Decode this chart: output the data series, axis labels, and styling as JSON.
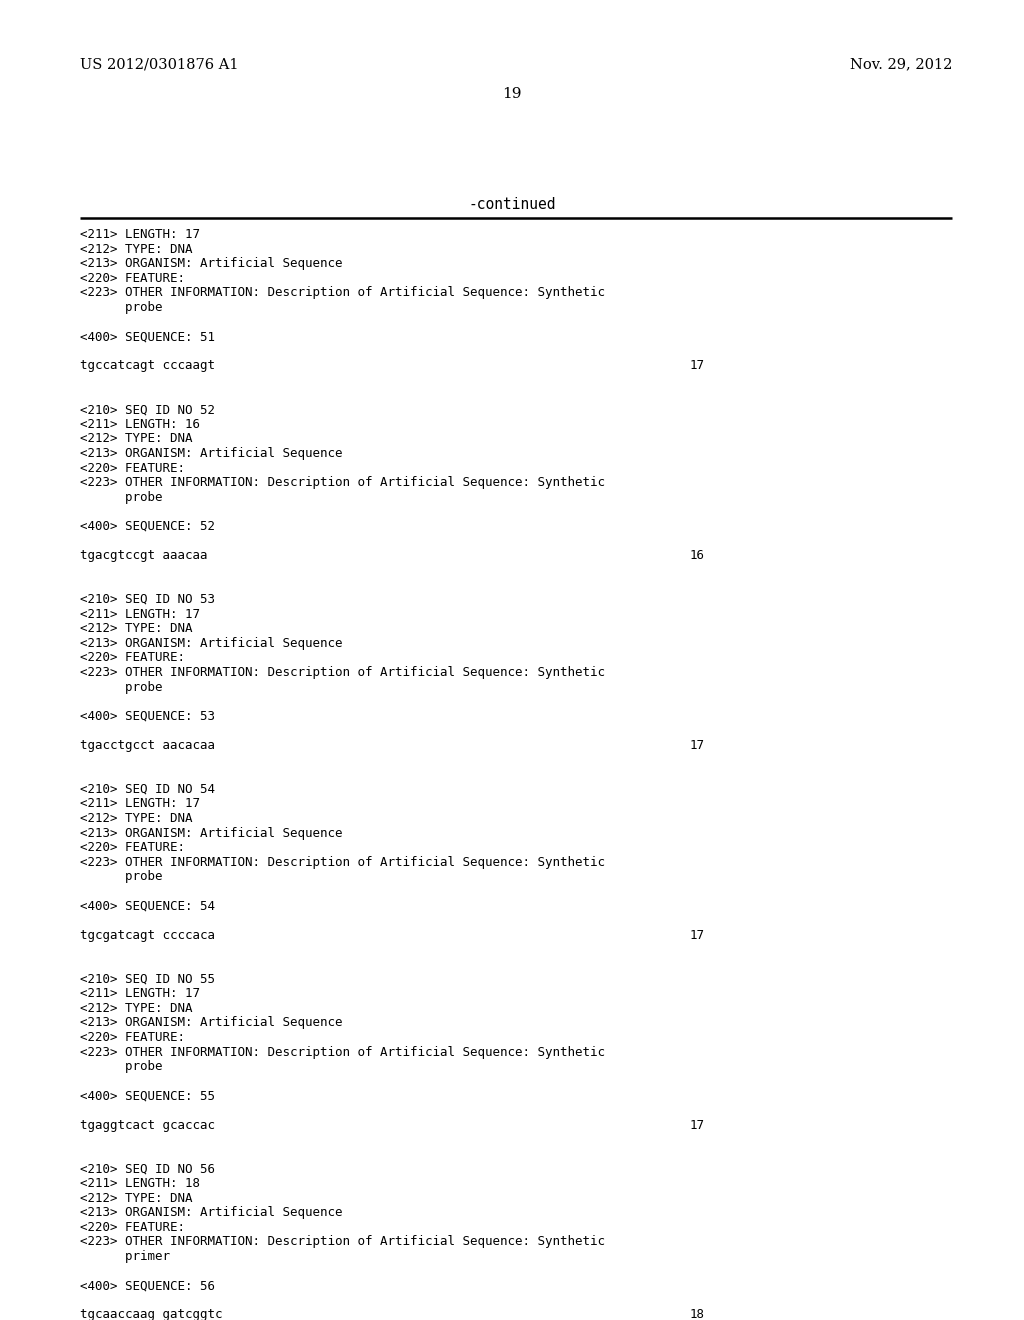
{
  "header_left": "US 2012/0301876 A1",
  "header_right": "Nov. 29, 2012",
  "page_number": "19",
  "continued_text": "-continued",
  "background_color": "#ffffff",
  "text_color": "#000000",
  "content_lines": [
    {
      "text": "<211> LENGTH: 17",
      "type": "meta"
    },
    {
      "text": "<212> TYPE: DNA",
      "type": "meta"
    },
    {
      "text": "<213> ORGANISM: Artificial Sequence",
      "type": "meta"
    },
    {
      "text": "<220> FEATURE:",
      "type": "meta"
    },
    {
      "text": "<223> OTHER INFORMATION: Description of Artificial Sequence: Synthetic",
      "type": "meta"
    },
    {
      "text": "      probe",
      "type": "meta"
    },
    {
      "text": "",
      "type": "blank"
    },
    {
      "text": "<400> SEQUENCE: 51",
      "type": "meta"
    },
    {
      "text": "",
      "type": "blank"
    },
    {
      "text": "tgccatcagt cccaagt",
      "type": "seq",
      "num": "17"
    },
    {
      "text": "",
      "type": "blank"
    },
    {
      "text": "",
      "type": "blank"
    },
    {
      "text": "<210> SEQ ID NO 52",
      "type": "meta"
    },
    {
      "text": "<211> LENGTH: 16",
      "type": "meta"
    },
    {
      "text": "<212> TYPE: DNA",
      "type": "meta"
    },
    {
      "text": "<213> ORGANISM: Artificial Sequence",
      "type": "meta"
    },
    {
      "text": "<220> FEATURE:",
      "type": "meta"
    },
    {
      "text": "<223> OTHER INFORMATION: Description of Artificial Sequence: Synthetic",
      "type": "meta"
    },
    {
      "text": "      probe",
      "type": "meta"
    },
    {
      "text": "",
      "type": "blank"
    },
    {
      "text": "<400> SEQUENCE: 52",
      "type": "meta"
    },
    {
      "text": "",
      "type": "blank"
    },
    {
      "text": "tgacgtccgt aaacaa",
      "type": "seq",
      "num": "16"
    },
    {
      "text": "",
      "type": "blank"
    },
    {
      "text": "",
      "type": "blank"
    },
    {
      "text": "<210> SEQ ID NO 53",
      "type": "meta"
    },
    {
      "text": "<211> LENGTH: 17",
      "type": "meta"
    },
    {
      "text": "<212> TYPE: DNA",
      "type": "meta"
    },
    {
      "text": "<213> ORGANISM: Artificial Sequence",
      "type": "meta"
    },
    {
      "text": "<220> FEATURE:",
      "type": "meta"
    },
    {
      "text": "<223> OTHER INFORMATION: Description of Artificial Sequence: Synthetic",
      "type": "meta"
    },
    {
      "text": "      probe",
      "type": "meta"
    },
    {
      "text": "",
      "type": "blank"
    },
    {
      "text": "<400> SEQUENCE: 53",
      "type": "meta"
    },
    {
      "text": "",
      "type": "blank"
    },
    {
      "text": "tgacctgcct aacacaa",
      "type": "seq",
      "num": "17"
    },
    {
      "text": "",
      "type": "blank"
    },
    {
      "text": "",
      "type": "blank"
    },
    {
      "text": "<210> SEQ ID NO 54",
      "type": "meta"
    },
    {
      "text": "<211> LENGTH: 17",
      "type": "meta"
    },
    {
      "text": "<212> TYPE: DNA",
      "type": "meta"
    },
    {
      "text": "<213> ORGANISM: Artificial Sequence",
      "type": "meta"
    },
    {
      "text": "<220> FEATURE:",
      "type": "meta"
    },
    {
      "text": "<223> OTHER INFORMATION: Description of Artificial Sequence: Synthetic",
      "type": "meta"
    },
    {
      "text": "      probe",
      "type": "meta"
    },
    {
      "text": "",
      "type": "blank"
    },
    {
      "text": "<400> SEQUENCE: 54",
      "type": "meta"
    },
    {
      "text": "",
      "type": "blank"
    },
    {
      "text": "tgcgatcagt ccccaca",
      "type": "seq",
      "num": "17"
    },
    {
      "text": "",
      "type": "blank"
    },
    {
      "text": "",
      "type": "blank"
    },
    {
      "text": "<210> SEQ ID NO 55",
      "type": "meta"
    },
    {
      "text": "<211> LENGTH: 17",
      "type": "meta"
    },
    {
      "text": "<212> TYPE: DNA",
      "type": "meta"
    },
    {
      "text": "<213> ORGANISM: Artificial Sequence",
      "type": "meta"
    },
    {
      "text": "<220> FEATURE:",
      "type": "meta"
    },
    {
      "text": "<223> OTHER INFORMATION: Description of Artificial Sequence: Synthetic",
      "type": "meta"
    },
    {
      "text": "      probe",
      "type": "meta"
    },
    {
      "text": "",
      "type": "blank"
    },
    {
      "text": "<400> SEQUENCE: 55",
      "type": "meta"
    },
    {
      "text": "",
      "type": "blank"
    },
    {
      "text": "tgaggtcact gcaccac",
      "type": "seq",
      "num": "17"
    },
    {
      "text": "",
      "type": "blank"
    },
    {
      "text": "",
      "type": "blank"
    },
    {
      "text": "<210> SEQ ID NO 56",
      "type": "meta"
    },
    {
      "text": "<211> LENGTH: 18",
      "type": "meta"
    },
    {
      "text": "<212> TYPE: DNA",
      "type": "meta"
    },
    {
      "text": "<213> ORGANISM: Artificial Sequence",
      "type": "meta"
    },
    {
      "text": "<220> FEATURE:",
      "type": "meta"
    },
    {
      "text": "<223> OTHER INFORMATION: Description of Artificial Sequence: Synthetic",
      "type": "meta"
    },
    {
      "text": "      primer",
      "type": "meta"
    },
    {
      "text": "",
      "type": "blank"
    },
    {
      "text": "<400> SEQUENCE: 56",
      "type": "meta"
    },
    {
      "text": "",
      "type": "blank"
    },
    {
      "text": "tgcaaccaag gatcggtc",
      "type": "seq",
      "num": "18"
    }
  ]
}
